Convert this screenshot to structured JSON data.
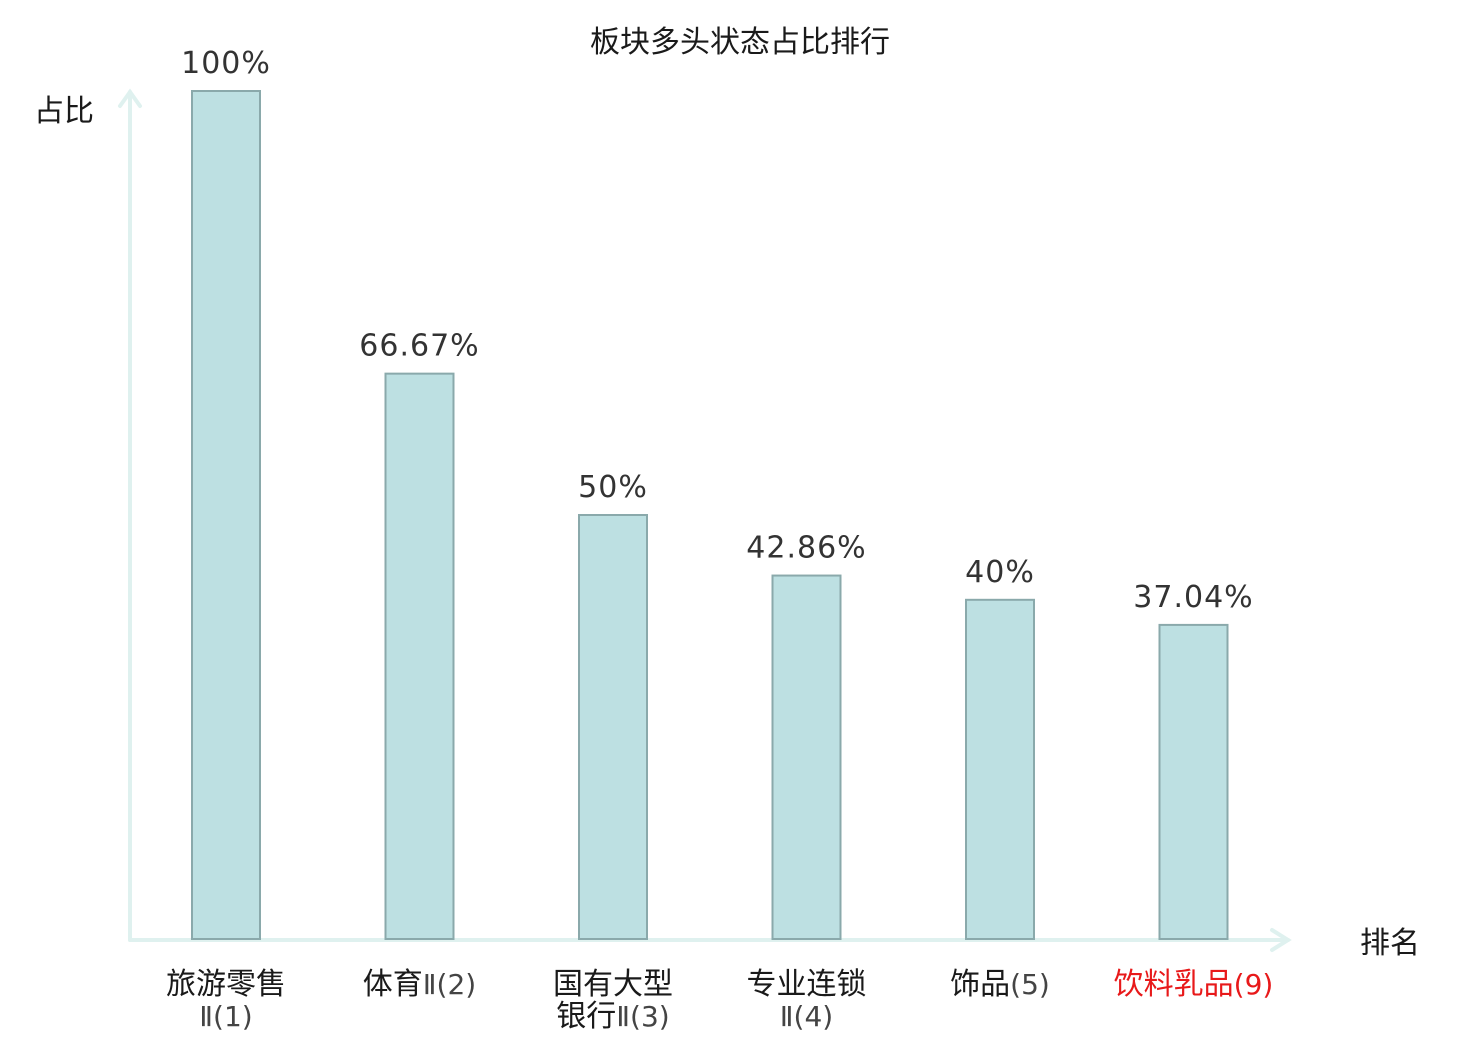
{
  "chart_data": {
    "type": "bar",
    "title": "板块多头状态占比排行",
    "ylabel": "占比",
    "xlabel": "排名",
    "ylim": [
      0,
      100
    ],
    "categories": [
      {
        "lines": [
          "旅游零售",
          "Ⅱ(1)"
        ],
        "highlight": false
      },
      {
        "lines": [
          "体育Ⅱ(2)"
        ],
        "highlight": false
      },
      {
        "lines": [
          "国有大型",
          "银行Ⅱ(3)"
        ],
        "highlight": false
      },
      {
        "lines": [
          "专业连锁",
          "Ⅱ(4)"
        ],
        "highlight": false
      },
      {
        "lines": [
          "饰品(5)"
        ],
        "highlight": false
      },
      {
        "lines": [
          "饮料乳品(9)"
        ],
        "highlight": true
      }
    ],
    "values": [
      100,
      66.67,
      50,
      42.86,
      40,
      37.04
    ],
    "value_labels": [
      "100%",
      "66.67%",
      "50%",
      "42.86%",
      "40%",
      "37.04%"
    ],
    "highlight_color": "#e8191a",
    "bar_color": "#bde0e2",
    "bar_stroke": "#8aa9ab",
    "axis_color": "#dff1ef"
  }
}
